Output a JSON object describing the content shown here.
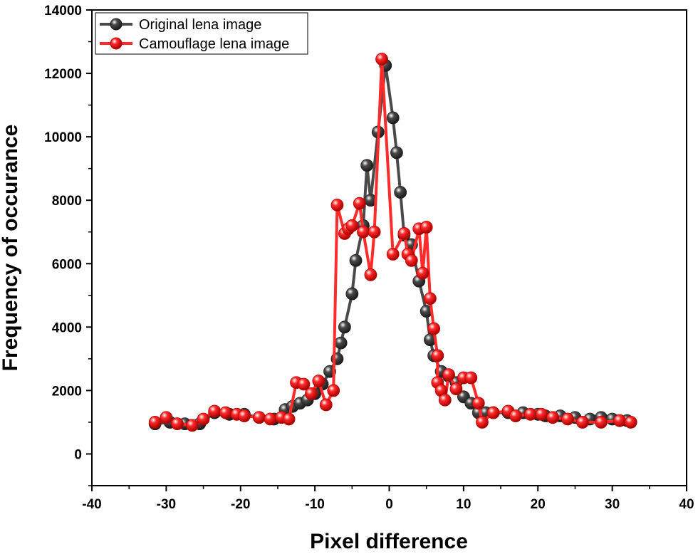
{
  "chart_data": {
    "type": "line",
    "title": "",
    "xlabel": "Pixel difference",
    "ylabel": "Frequency of occurance",
    "xlim": [
      -40,
      40
    ],
    "ylim": [
      -1000,
      14000
    ],
    "xticks": [
      -40,
      -30,
      -20,
      -10,
      0,
      10,
      20,
      30,
      40
    ],
    "yticks": [
      0,
      2000,
      4000,
      6000,
      8000,
      10000,
      12000,
      14000
    ],
    "legend_position": "top-left",
    "series": [
      {
        "name": "Original lena image",
        "color": "#4a4a4a",
        "x": [
          -31.5,
          -29.5,
          -27.5,
          -25.5,
          -23.5,
          -21.5,
          -19.5,
          -17.5,
          -15.5,
          -14,
          -13,
          -12,
          -11,
          -10,
          -9,
          -8,
          -7,
          -6.5,
          -6,
          -5,
          -4.5,
          -3.5,
          -3,
          -2.5,
          -1.5,
          -0.5,
          0.5,
          1,
          1.5,
          2,
          3,
          4,
          5,
          5.5,
          6,
          7,
          8,
          9,
          10,
          11,
          12,
          13,
          14,
          16,
          18,
          20,
          21,
          23,
          25,
          27,
          28.5,
          30,
          32
        ],
        "y": [
          950,
          1000,
          950,
          950,
          1300,
          1250,
          1250,
          1150,
          1100,
          1400,
          1500,
          1600,
          1700,
          1900,
          2200,
          2600,
          3000,
          3500,
          4000,
          5050,
          6100,
          7200,
          9100,
          8000,
          10150,
          12250,
          10600,
          9500,
          8250,
          6900,
          6600,
          5450,
          4500,
          3600,
          3100,
          2600,
          2450,
          2250,
          1800,
          1600,
          1300,
          1300,
          1300,
          1300,
          1300,
          1250,
          1200,
          1200,
          1150,
          1100,
          1150,
          1100,
          1050
        ]
      },
      {
        "name": "Camouflage lena image",
        "color": "#ff2a2a",
        "x": [
          -31.5,
          -30,
          -28.5,
          -26.5,
          -25,
          -23.5,
          -22,
          -20.5,
          -19.5,
          -17.5,
          -16,
          -14.5,
          -13.5,
          -12.5,
          -11.5,
          -10.5,
          -9.5,
          -8.5,
          -7.5,
          -7,
          -6,
          -5.5,
          -5,
          -4,
          -3.5,
          -2.5,
          -2,
          -1,
          0.5,
          2,
          2.5,
          3,
          4,
          4.5,
          5,
          5.5,
          6,
          6.5,
          6.5,
          7,
          7.5,
          8,
          9,
          10,
          11,
          12,
          12.5,
          14,
          16,
          17,
          19,
          20.5,
          22,
          24,
          26,
          28.5,
          31,
          32.5
        ],
        "y": [
          1000,
          1150,
          950,
          900,
          1100,
          1350,
          1300,
          1250,
          1200,
          1150,
          1100,
          1150,
          1100,
          2250,
          2200,
          1900,
          2300,
          1550,
          2000,
          7850,
          6950,
          7100,
          7200,
          7900,
          7000,
          5650,
          7000,
          12450,
          6300,
          6950,
          6300,
          6100,
          7100,
          5700,
          7150,
          4900,
          3950,
          3100,
          2250,
          2000,
          1700,
          2500,
          2050,
          2400,
          2400,
          1600,
          1000,
          1300,
          1350,
          1200,
          1250,
          1250,
          1150,
          1100,
          1000,
          1000,
          1050,
          1000
        ]
      }
    ]
  }
}
